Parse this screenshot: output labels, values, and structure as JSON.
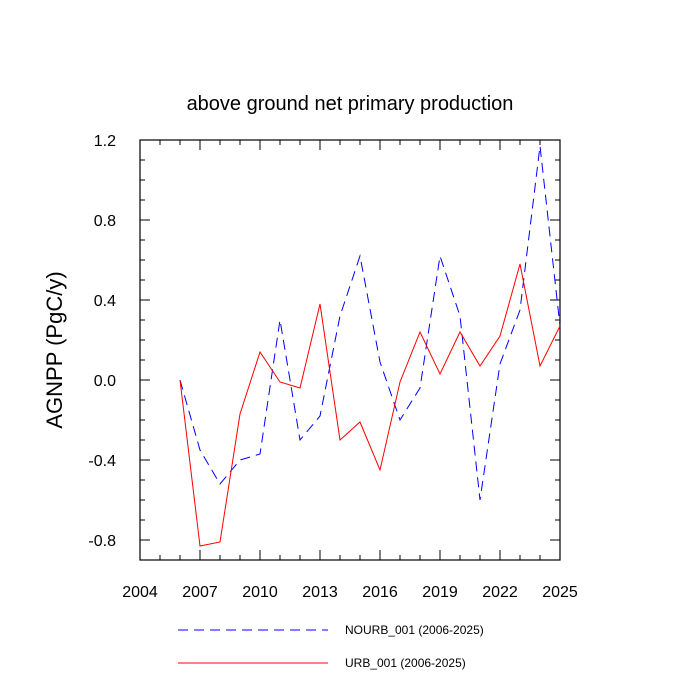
{
  "chart_data": {
    "type": "line",
    "title": "above ground net primary production",
    "xlabel": "",
    "ylabel": "AGNPP  (PgC/y)",
    "xlim": [
      2004,
      2025
    ],
    "ylim": [
      -0.9,
      1.2
    ],
    "xticks": [
      2004,
      2007,
      2010,
      2013,
      2016,
      2019,
      2022,
      2025
    ],
    "yticks": [
      -0.8,
      -0.4,
      0.0,
      0.4,
      0.8,
      1.2
    ],
    "xtick_labels": [
      "2004",
      "2007",
      "2010",
      "2013",
      "2016",
      "2019",
      "2022",
      "2025"
    ],
    "ytick_labels": [
      "-0.8",
      "-0.4",
      "0.0",
      "0.4",
      "0.8",
      "1.2"
    ],
    "grid": false,
    "legend_position": "bottom",
    "series": [
      {
        "name": "NOURB_001 (2006-2025)",
        "color": "#0000ff",
        "dash": "dashed",
        "x": [
          2006,
          2007,
          2008,
          2009,
          2010,
          2011,
          2012,
          2013,
          2014,
          2015,
          2016,
          2017,
          2018,
          2019,
          2020,
          2021,
          2022,
          2023,
          2024,
          2025
        ],
        "values": [
          0.0,
          -0.35,
          -0.52,
          -0.4,
          -0.37,
          0.3,
          -0.3,
          -0.18,
          0.32,
          0.62,
          0.09,
          -0.2,
          -0.04,
          0.62,
          0.32,
          -0.6,
          0.08,
          0.35,
          1.17,
          0.27
        ]
      },
      {
        "name": "URB_001 (2006-2025)",
        "color": "#ff0000",
        "dash": "solid",
        "x": [
          2006,
          2007,
          2008,
          2009,
          2010,
          2011,
          2012,
          2013,
          2014,
          2015,
          2016,
          2017,
          2018,
          2019,
          2020,
          2021,
          2022,
          2023,
          2024,
          2025
        ],
        "values": [
          0.0,
          -0.83,
          -0.81,
          -0.17,
          0.14,
          -0.01,
          -0.04,
          0.38,
          -0.3,
          -0.21,
          -0.45,
          -0.01,
          0.24,
          0.03,
          0.24,
          0.07,
          0.22,
          0.58,
          0.07,
          0.27
        ]
      }
    ]
  }
}
